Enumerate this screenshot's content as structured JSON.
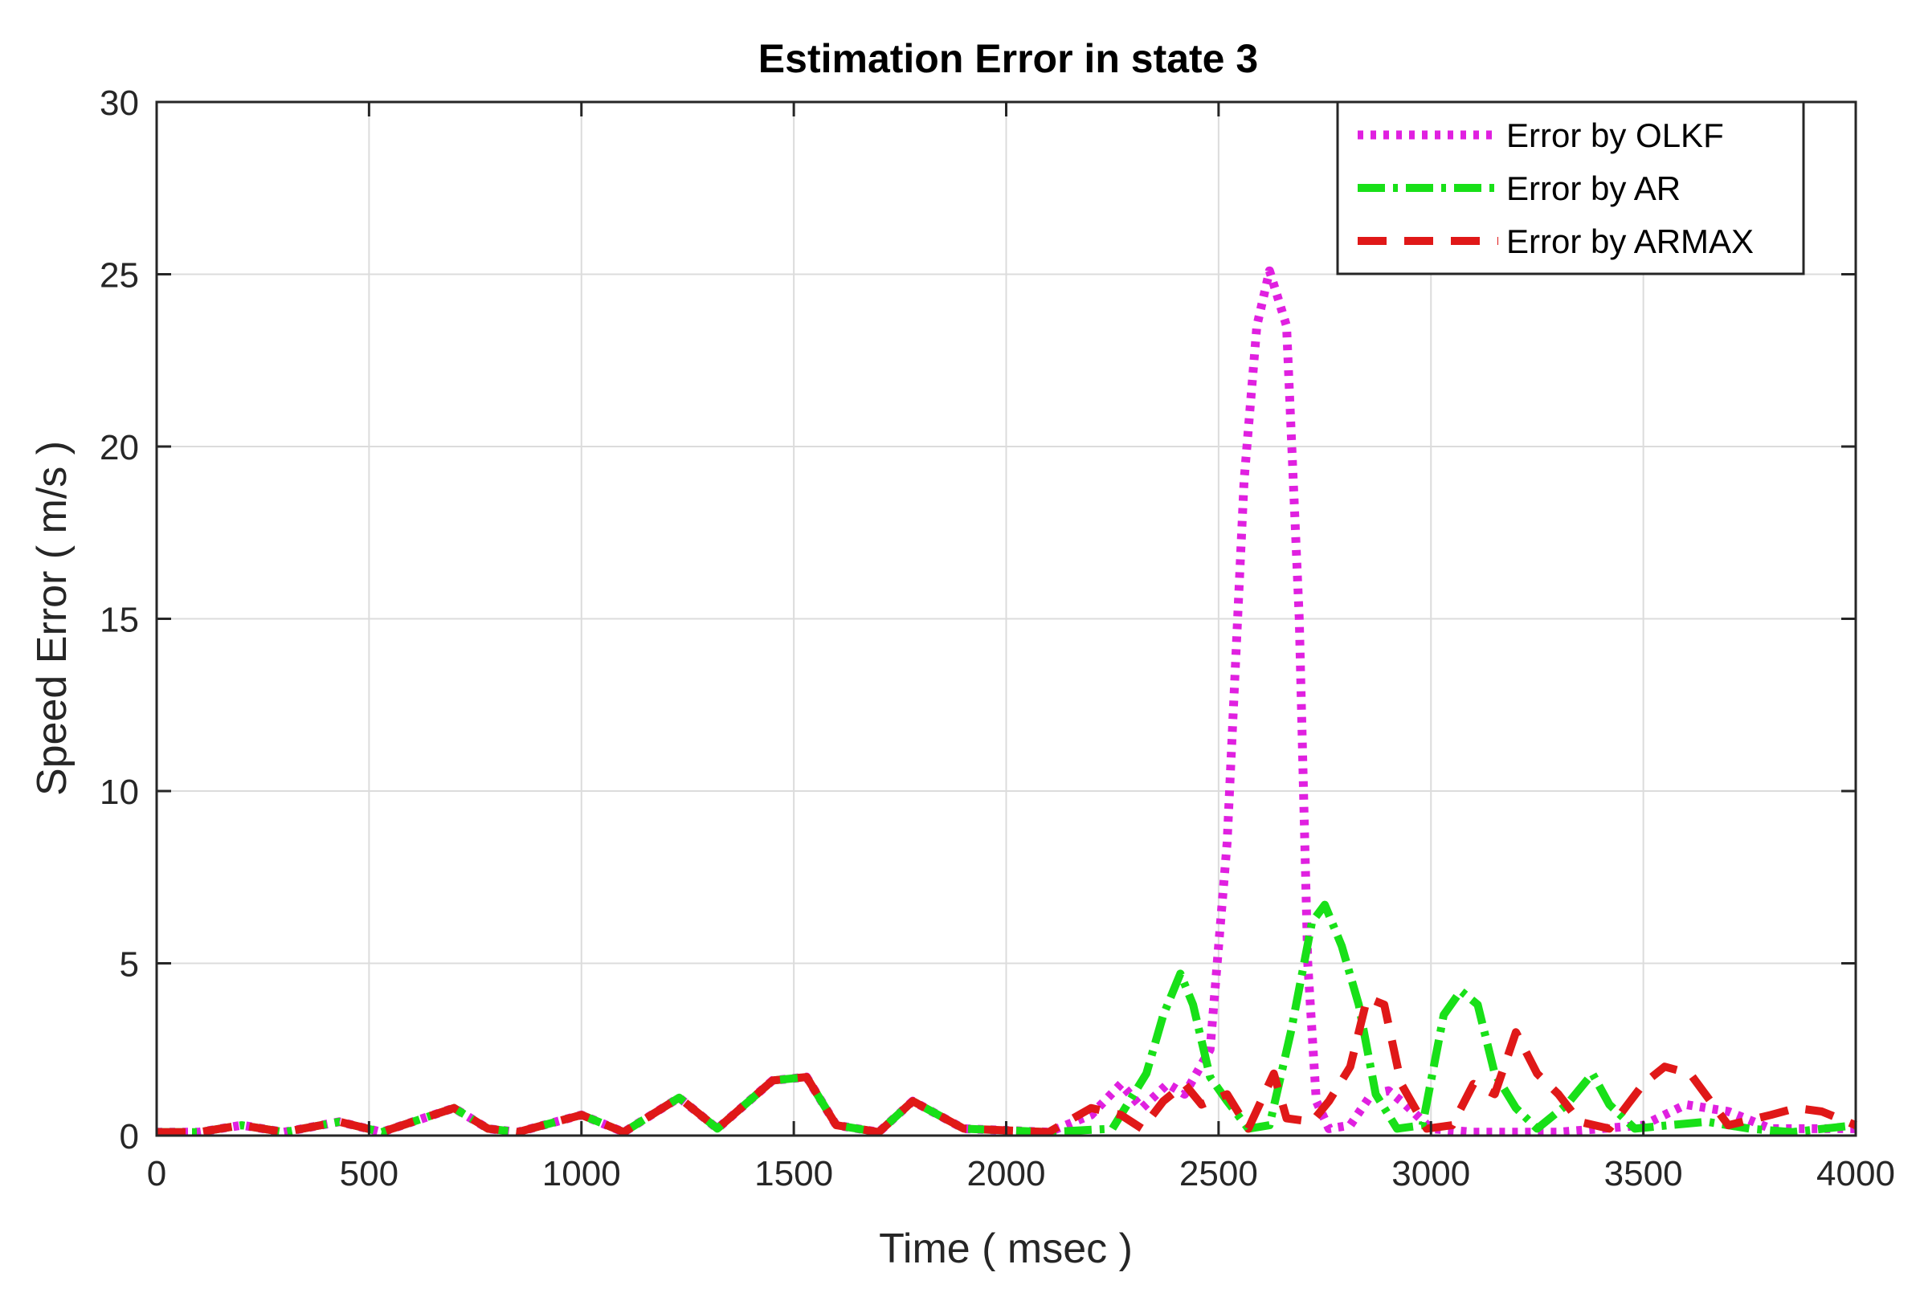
{
  "chart_data": {
    "type": "line",
    "title": "Estimation Error in state 3",
    "xlabel": "Time ( msec )",
    "ylabel": "Speed Error ( m/s )",
    "xlim": [
      0,
      4000
    ],
    "ylim": [
      0,
      30
    ],
    "xticks": [
      0,
      500,
      1000,
      1500,
      2000,
      2500,
      3000,
      3500,
      4000
    ],
    "yticks": [
      0,
      5,
      10,
      15,
      20,
      25,
      30
    ],
    "grid": true,
    "legend_position": "top-right",
    "series": [
      {
        "name": "Error by OLKF",
        "color": "#e020e0",
        "style": "dotted",
        "points": [
          [
            0,
            0.1
          ],
          [
            100,
            0.1
          ],
          [
            200,
            0.3
          ],
          [
            300,
            0.1
          ],
          [
            430,
            0.4
          ],
          [
            530,
            0.1
          ],
          [
            700,
            0.8
          ],
          [
            780,
            0.2
          ],
          [
            850,
            0.1
          ],
          [
            1000,
            0.6
          ],
          [
            1100,
            0.1
          ],
          [
            1230,
            1.1
          ],
          [
            1320,
            0.2
          ],
          [
            1450,
            1.6
          ],
          [
            1530,
            1.7
          ],
          [
            1600,
            0.3
          ],
          [
            1700,
            0.1
          ],
          [
            1780,
            1.0
          ],
          [
            1900,
            0.2
          ],
          [
            2100,
            0.1
          ],
          [
            2200,
            0.6
          ],
          [
            2270,
            1.5
          ],
          [
            2320,
            0.8
          ],
          [
            2380,
            1.5
          ],
          [
            2420,
            1.2
          ],
          [
            2480,
            2.5
          ],
          [
            2520,
            8.5
          ],
          [
            2560,
            19.0
          ],
          [
            2590,
            23.5
          ],
          [
            2620,
            25.1
          ],
          [
            2660,
            23.5
          ],
          [
            2690,
            15.0
          ],
          [
            2710,
            5.0
          ],
          [
            2730,
            1.0
          ],
          [
            2760,
            0.2
          ],
          [
            2810,
            0.3
          ],
          [
            2860,
            1.2
          ],
          [
            2900,
            1.3
          ],
          [
            2940,
            0.9
          ],
          [
            3000,
            0.2
          ],
          [
            3100,
            0.1
          ],
          [
            3300,
            0.1
          ],
          [
            3500,
            0.3
          ],
          [
            3600,
            0.9
          ],
          [
            3700,
            0.7
          ],
          [
            3800,
            0.2
          ],
          [
            4000,
            0.2
          ]
        ]
      },
      {
        "name": "Error by AR",
        "color": "#18e018",
        "style": "dash-dot",
        "points": [
          [
            0,
            0.1
          ],
          [
            100,
            0.1
          ],
          [
            200,
            0.3
          ],
          [
            300,
            0.1
          ],
          [
            430,
            0.4
          ],
          [
            530,
            0.1
          ],
          [
            700,
            0.8
          ],
          [
            780,
            0.2
          ],
          [
            850,
            0.1
          ],
          [
            1000,
            0.6
          ],
          [
            1100,
            0.1
          ],
          [
            1230,
            1.1
          ],
          [
            1320,
            0.2
          ],
          [
            1450,
            1.6
          ],
          [
            1530,
            1.7
          ],
          [
            1600,
            0.3
          ],
          [
            1700,
            0.1
          ],
          [
            1780,
            1.0
          ],
          [
            1900,
            0.2
          ],
          [
            2100,
            0.1
          ],
          [
            2250,
            0.2
          ],
          [
            2330,
            1.8
          ],
          [
            2370,
            3.5
          ],
          [
            2410,
            4.7
          ],
          [
            2440,
            3.8
          ],
          [
            2480,
            1.7
          ],
          [
            2520,
            1.0
          ],
          [
            2570,
            0.2
          ],
          [
            2620,
            0.3
          ],
          [
            2670,
            3.0
          ],
          [
            2720,
            6.2
          ],
          [
            2750,
            6.7
          ],
          [
            2790,
            5.5
          ],
          [
            2830,
            3.8
          ],
          [
            2870,
            1.2
          ],
          [
            2920,
            0.2
          ],
          [
            2980,
            0.3
          ],
          [
            3030,
            3.5
          ],
          [
            3070,
            4.2
          ],
          [
            3110,
            3.8
          ],
          [
            3150,
            1.8
          ],
          [
            3200,
            0.8
          ],
          [
            3250,
            0.2
          ],
          [
            3320,
            0.9
          ],
          [
            3380,
            1.8
          ],
          [
            3420,
            0.9
          ],
          [
            3480,
            0.2
          ],
          [
            3560,
            0.3
          ],
          [
            3650,
            0.4
          ],
          [
            3750,
            0.2
          ],
          [
            3850,
            0.1
          ],
          [
            4000,
            0.3
          ]
        ]
      },
      {
        "name": "Error by ARMAX",
        "color": "#e01818",
        "style": "dashed",
        "points": [
          [
            0,
            0.1
          ],
          [
            100,
            0.1
          ],
          [
            200,
            0.3
          ],
          [
            300,
            0.1
          ],
          [
            430,
            0.4
          ],
          [
            530,
            0.1
          ],
          [
            700,
            0.8
          ],
          [
            780,
            0.2
          ],
          [
            850,
            0.1
          ],
          [
            1000,
            0.6
          ],
          [
            1100,
            0.1
          ],
          [
            1230,
            1.1
          ],
          [
            1320,
            0.2
          ],
          [
            1450,
            1.6
          ],
          [
            1530,
            1.7
          ],
          [
            1600,
            0.3
          ],
          [
            1700,
            0.1
          ],
          [
            1780,
            1.0
          ],
          [
            1900,
            0.2
          ],
          [
            2100,
            0.1
          ],
          [
            2200,
            0.8
          ],
          [
            2270,
            0.6
          ],
          [
            2320,
            0.2
          ],
          [
            2370,
            1.0
          ],
          [
            2420,
            1.5
          ],
          [
            2460,
            0.9
          ],
          [
            2520,
            1.2
          ],
          [
            2570,
            0.2
          ],
          [
            2630,
            1.8
          ],
          [
            2660,
            0.5
          ],
          [
            2720,
            0.4
          ],
          [
            2760,
            1.0
          ],
          [
            2810,
            2.0
          ],
          [
            2850,
            4.0
          ],
          [
            2890,
            3.8
          ],
          [
            2930,
            1.5
          ],
          [
            2990,
            0.2
          ],
          [
            3050,
            0.3
          ],
          [
            3100,
            1.5
          ],
          [
            3150,
            1.2
          ],
          [
            3200,
            3.0
          ],
          [
            3250,
            1.8
          ],
          [
            3300,
            1.2
          ],
          [
            3350,
            0.4
          ],
          [
            3420,
            0.2
          ],
          [
            3500,
            1.5
          ],
          [
            3550,
            2.0
          ],
          [
            3610,
            1.8
          ],
          [
            3700,
            0.3
          ],
          [
            3800,
            0.6
          ],
          [
            3860,
            0.8
          ],
          [
            3920,
            0.7
          ],
          [
            4000,
            0.3
          ]
        ]
      }
    ]
  }
}
